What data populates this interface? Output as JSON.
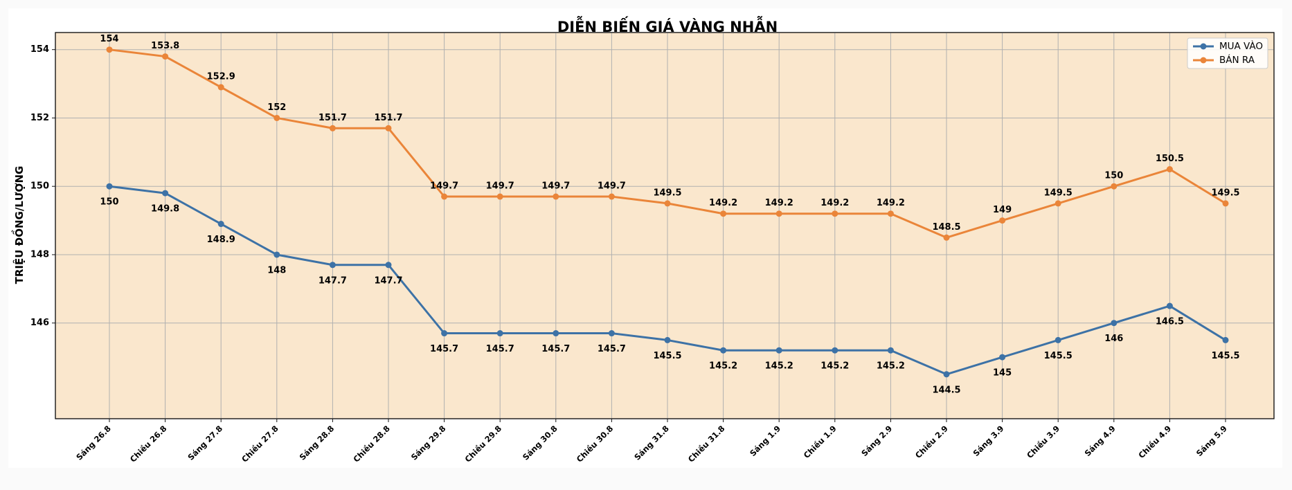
{
  "chart_data": {
    "type": "line",
    "title": "DIỄN BIẾN GIÁ VÀNG NHẪN",
    "xlabel": "",
    "ylabel": "TRIỆU ĐỒNG/LƯỢNG",
    "ylim": [
      143.2,
      154.5
    ],
    "yticks": [
      146,
      148,
      150,
      152,
      154
    ],
    "grid": true,
    "legend_position": "top-right",
    "plot_background": "#fae7cd",
    "categories": [
      "Sáng 26.8",
      "Chiều 26.8",
      "Sáng 27.8",
      "Chiều 27.8",
      "Sáng 28.8",
      "Chiều 28.8",
      "Sáng 29.8",
      "Chiều 29.8",
      "Sáng 30.8",
      "Chiều 30.8",
      "Sáng 31.8",
      "Chiều 31.8",
      "Sáng 1.9",
      "Chiều 1.9",
      "Sáng 2.9",
      "Chiều 2.9",
      "Sáng 3.9",
      "Chiều 3.9",
      "Sáng 4.9",
      "Chiều 4.9",
      "Sáng 5.9"
    ],
    "series": [
      {
        "name": "MUA VÀO",
        "color": "#3d72a6",
        "labels": [
          "150",
          "149.8",
          "148.9",
          "148",
          "147.7",
          "147.7",
          "145.7",
          "145.7",
          "145.7",
          "145.7",
          "145.5",
          "145.2",
          "145.2",
          "145.2",
          "145.2",
          "144.5",
          "145",
          "145.5",
          "146",
          "146.5",
          "145.5"
        ],
        "values": [
          150,
          149.8,
          148.9,
          148,
          147.7,
          147.7,
          145.7,
          145.7,
          145.7,
          145.7,
          145.5,
          145.2,
          145.2,
          145.2,
          145.2,
          144.5,
          145,
          145.5,
          146,
          146.5,
          145.5
        ]
      },
      {
        "name": "BÁN RA",
        "color": "#ea8539",
        "labels": [
          "154",
          "153.8",
          "152.9",
          "152",
          "151.7",
          "151.7",
          "149.7",
          "149.7",
          "149.7",
          "149.7",
          "149.5",
          "149.2",
          "149.2",
          "149.2",
          "149.2",
          "148.5",
          "149",
          "149.5",
          "150",
          "150.5",
          "149.5"
        ],
        "values": [
          154,
          153.8,
          152.9,
          152,
          151.7,
          151.7,
          149.7,
          149.7,
          149.7,
          149.7,
          149.5,
          149.2,
          149.2,
          149.2,
          149.2,
          148.5,
          149,
          149.5,
          150,
          150.5,
          149.5
        ]
      }
    ]
  }
}
